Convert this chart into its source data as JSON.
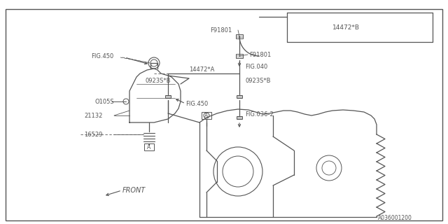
{
  "bg_color": "#ffffff",
  "line_color": "#555555",
  "fig_width": 6.4,
  "fig_height": 3.2,
  "dpi": 100,
  "border": [
    0.012,
    0.04,
    0.976,
    0.945
  ]
}
